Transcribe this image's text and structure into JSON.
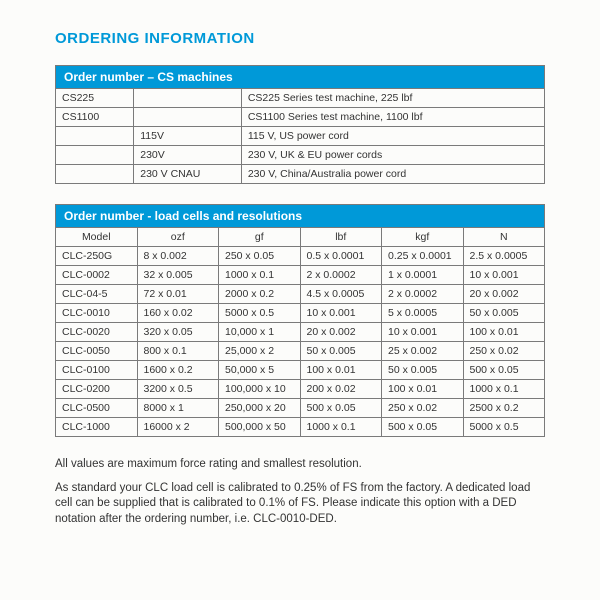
{
  "heading": "ORDERING INFORMATION",
  "table1": {
    "title": "Order number – CS machines",
    "rows": [
      [
        "CS225",
        "",
        "CS225 Series test machine, 225 lbf"
      ],
      [
        "CS1100",
        "",
        "CS1100 Series test machine, 1100 lbf"
      ],
      [
        "",
        "115V",
        "115 V, US power cord"
      ],
      [
        "",
        "230V",
        "230 V, UK & EU power cords"
      ],
      [
        "",
        "230 V CNAU",
        "230 V, China/Australia power cord"
      ]
    ]
  },
  "table2": {
    "title": "Order number - load cells and resolutions",
    "headers": [
      "Model",
      "ozf",
      "gf",
      "lbf",
      "kgf",
      "N"
    ],
    "rows": [
      [
        "CLC-250G",
        "8 x 0.002",
        "250 x 0.05",
        "0.5 x 0.0001",
        "0.25 x 0.0001",
        "2.5 x 0.0005"
      ],
      [
        "CLC-0002",
        "32 x 0.005",
        "1000 x 0.1",
        "2 x 0.0002",
        "1 x 0.0001",
        "10 x 0.001"
      ],
      [
        "CLC-04-5",
        "72 x 0.01",
        "2000 x 0.2",
        "4.5 x 0.0005",
        "2 x 0.0002",
        "20 x 0.002"
      ],
      [
        "CLC-0010",
        "160 x 0.02",
        "5000 x 0.5",
        "10 x 0.001",
        "5 x 0.0005",
        "50 x 0.005"
      ],
      [
        "CLC-0020",
        "320 x 0.05",
        "10,000 x 1",
        "20 x 0.002",
        "10 x 0.001",
        "100 x 0.01"
      ],
      [
        "CLC-0050",
        "800 x 0.1",
        "25,000 x 2",
        "50 x 0.005",
        "25 x 0.002",
        "250 x 0.02"
      ],
      [
        "CLC-0100",
        "1600 x 0.2",
        "50,000 x 5",
        "100 x 0.01",
        "50 x 0.005",
        "500 x 0.05"
      ],
      [
        "CLC-0200",
        "3200 x 0.5",
        "100,000 x 10",
        "200 x 0.02",
        "100 x 0.01",
        "1000 x 0.1"
      ],
      [
        "CLC-0500",
        "8000 x 1",
        "250,000 x 20",
        "500 x 0.05",
        "250 x 0.02",
        "2500 x 0.2"
      ],
      [
        "CLC-1000",
        "16000 x 2",
        "500,000 x 50",
        "1000 x 0.1",
        "500 x 0.05",
        "5000 x 0.5"
      ]
    ]
  },
  "note1": "All values are maximum force rating and smallest resolution.",
  "note2": "As standard your CLC load cell is calibrated to 0.25% of FS from the factory. A dedicated load cell can be supplied that is calibrated to 0.1% of FS. Please indicate this option with a DED notation after the ordering number, i.e. CLC-0010-DED."
}
